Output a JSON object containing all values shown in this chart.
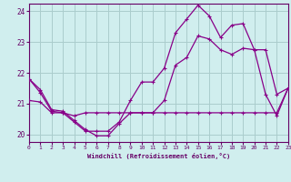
{
  "background_color": "#d0eeee",
  "grid_color": "#aacccc",
  "line_color": "#880088",
  "xlabel": "Windchill (Refroidissement éolien,°C)",
  "ylabel_ticks": [
    20,
    21,
    22,
    23,
    24
  ],
  "xlim": [
    0,
    23
  ],
  "ylim": [
    19.75,
    24.25
  ],
  "xticks": [
    0,
    1,
    2,
    3,
    4,
    5,
    6,
    7,
    8,
    9,
    10,
    11,
    12,
    13,
    14,
    15,
    16,
    17,
    18,
    19,
    20,
    21,
    22,
    23
  ],
  "line1_x": [
    0,
    1,
    2,
    3,
    4,
    5,
    6,
    7,
    8,
    9,
    10,
    11,
    12,
    13,
    14,
    15,
    16,
    17,
    18,
    19,
    20,
    21,
    22,
    23
  ],
  "line1_y": [
    21.8,
    21.45,
    20.8,
    20.75,
    20.45,
    20.15,
    19.95,
    19.95,
    20.35,
    20.7,
    20.7,
    20.7,
    21.1,
    22.25,
    22.5,
    23.2,
    23.1,
    22.75,
    22.6,
    22.8,
    22.75,
    22.75,
    21.3,
    21.5
  ],
  "line2_x": [
    0,
    1,
    2,
    3,
    4,
    5,
    6,
    7,
    8,
    9,
    10,
    11,
    12,
    13,
    14,
    15,
    16,
    17,
    18,
    19,
    20,
    21,
    22,
    23
  ],
  "line2_y": [
    21.8,
    21.35,
    20.75,
    20.7,
    20.4,
    20.1,
    20.1,
    20.1,
    20.4,
    21.1,
    21.7,
    21.7,
    22.15,
    23.3,
    23.75,
    24.2,
    23.85,
    23.15,
    23.55,
    23.6,
    22.75,
    21.3,
    20.6,
    21.5
  ],
  "line3_x": [
    0,
    1,
    2,
    3,
    4,
    5,
    6,
    7,
    8,
    9,
    10,
    11,
    12,
    13,
    14,
    15,
    16,
    17,
    18,
    19,
    20,
    21,
    22,
    23
  ],
  "line3_y": [
    21.1,
    21.05,
    20.7,
    20.7,
    20.6,
    20.7,
    20.7,
    20.7,
    20.7,
    20.7,
    20.7,
    20.7,
    20.7,
    20.7,
    20.7,
    20.7,
    20.7,
    20.7,
    20.7,
    20.7,
    20.7,
    20.7,
    20.7,
    21.5
  ],
  "tick_color": "#660066",
  "xlabel_color": "#660066",
  "spine_color": "#660066"
}
